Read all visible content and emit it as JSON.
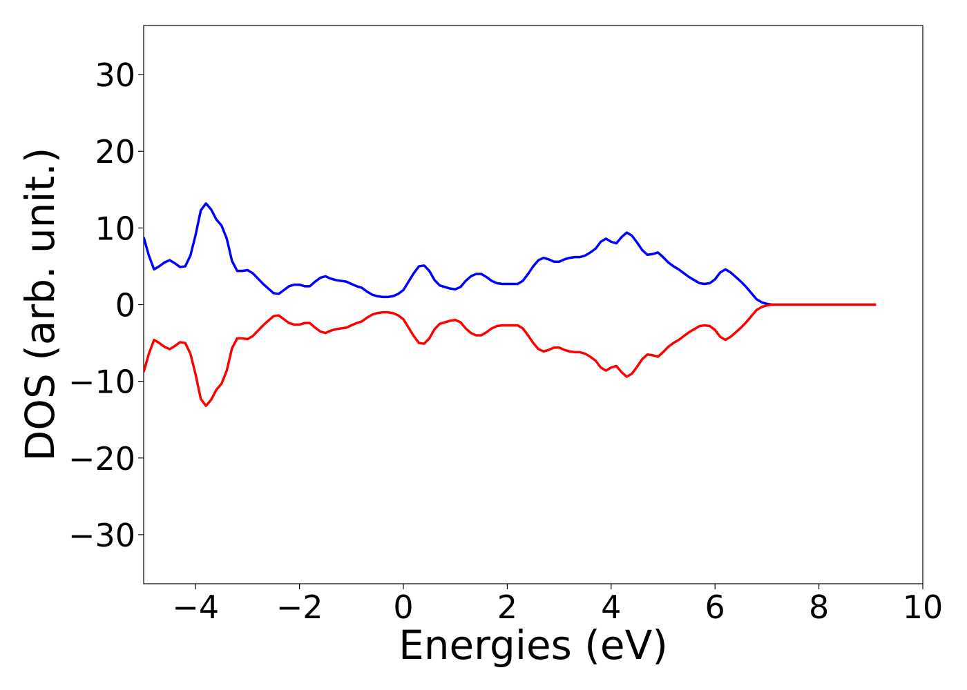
{
  "chart_data": {
    "type": "line",
    "x_label": "Energies (eV)",
    "y_label": "DOS (arb. unit.)",
    "xlim": [
      -5,
      10
    ],
    "ylim": [
      -36.4,
      36.4
    ],
    "xticks": [
      {
        "value": -4,
        "label": "−4"
      },
      {
        "value": -2,
        "label": "−2"
      },
      0,
      2,
      4,
      6,
      8,
      10
    ],
    "yticks": [
      {
        "value": -30,
        "label": "−30"
      },
      {
        "value": -20,
        "label": "−20"
      },
      {
        "value": -10,
        "label": "−10"
      },
      0,
      10,
      20,
      30
    ],
    "grid": false,
    "x": [
      -5,
      -4.9,
      -4.8,
      -4.7,
      -4.6,
      -4.5,
      -4.4,
      -4.3,
      -4.2,
      -4.1,
      -4,
      -3.9,
      -3.8,
      -3.7,
      -3.6,
      -3.5,
      -3.4,
      -3.3,
      -3.2,
      -3.1,
      -3,
      -2.9,
      -2.8,
      -2.7,
      -2.6,
      -2.5,
      -2.4,
      -2.3,
      -2.2,
      -2.1,
      -2,
      -1.9,
      -1.8,
      -1.7,
      -1.6,
      -1.5,
      -1.4,
      -1.3,
      -1.2,
      -1.1,
      -1,
      -0.9,
      -0.8,
      -0.7,
      -0.6,
      -0.5,
      -0.4,
      -0.3,
      -0.2,
      -0.1,
      0,
      0.1,
      0.2,
      0.3,
      0.4,
      0.5,
      0.6,
      0.7,
      0.8,
      0.9,
      1,
      1.1,
      1.2,
      1.3,
      1.4,
      1.5,
      1.6,
      1.7,
      1.8,
      1.9,
      2,
      2.1,
      2.2,
      2.3,
      2.4,
      2.5,
      2.6,
      2.7,
      2.8,
      2.9,
      3,
      3.1,
      3.2,
      3.3,
      3.4,
      3.5,
      3.6,
      3.7,
      3.8,
      3.9,
      4,
      4.1,
      4.2,
      4.3,
      4.4,
      4.5,
      4.6,
      4.7,
      4.8,
      4.9,
      5,
      5.1,
      5.2,
      5.3,
      5.4,
      5.5,
      5.6,
      5.7,
      5.8,
      5.9,
      6,
      6.1,
      6.2,
      6.3,
      6.4,
      6.5,
      6.6,
      6.7,
      6.8,
      6.9,
      7,
      7.1,
      7.5,
      8,
      8.5,
      9.1
    ],
    "series": [
      {
        "color": "#0000ff",
        "values": [
          8.8,
          6.4,
          4.6,
          5.0,
          5.5,
          5.8,
          5.4,
          4.9,
          5.0,
          6.4,
          9.1,
          12.3,
          13.2,
          12.4,
          11.1,
          10.3,
          8.6,
          5.7,
          4.4,
          4.4,
          4.5,
          4.1,
          3.4,
          2.7,
          2.1,
          1.5,
          1.4,
          1.9,
          2.4,
          2.6,
          2.6,
          2.4,
          2.4,
          3.0,
          3.5,
          3.7,
          3.4,
          3.2,
          3.1,
          3.0,
          2.7,
          2.4,
          2.2,
          1.7,
          1.3,
          1.1,
          1.0,
          1.0,
          1.1,
          1.4,
          1.9,
          3.0,
          4.1,
          5.0,
          5.1,
          4.4,
          3.2,
          2.5,
          2.3,
          2.1,
          2.0,
          2.3,
          3.1,
          3.7,
          4.0,
          4.0,
          3.6,
          3.1,
          2.8,
          2.7,
          2.7,
          2.7,
          2.7,
          3.1,
          4.0,
          5.0,
          5.8,
          6.1,
          5.9,
          5.6,
          5.6,
          5.9,
          6.1,
          6.2,
          6.2,
          6.4,
          6.8,
          7.3,
          8.2,
          8.6,
          8.2,
          8.0,
          8.8,
          9.4,
          9.0,
          8.1,
          7.1,
          6.5,
          6.6,
          6.8,
          6.2,
          5.5,
          5.0,
          4.6,
          4.1,
          3.6,
          3.2,
          2.8,
          2.7,
          2.8,
          3.3,
          4.2,
          4.6,
          4.2,
          3.6,
          3.0,
          2.3,
          1.5,
          0.7,
          0.3,
          0.1,
          0,
          0,
          0,
          0,
          0
        ]
      },
      {
        "color": "#ff0000",
        "values": [
          -8.8,
          -6.4,
          -4.6,
          -5.0,
          -5.5,
          -5.8,
          -5.4,
          -4.9,
          -5.0,
          -6.4,
          -9.1,
          -12.3,
          -13.2,
          -12.4,
          -11.1,
          -10.3,
          -8.6,
          -5.7,
          -4.4,
          -4.4,
          -4.5,
          -4.1,
          -3.4,
          -2.7,
          -2.1,
          -1.5,
          -1.4,
          -1.9,
          -2.4,
          -2.6,
          -2.6,
          -2.4,
          -2.4,
          -3.0,
          -3.5,
          -3.7,
          -3.4,
          -3.2,
          -3.1,
          -3.0,
          -2.7,
          -2.4,
          -2.2,
          -1.7,
          -1.3,
          -1.1,
          -1.0,
          -1.0,
          -1.1,
          -1.4,
          -1.9,
          -3.0,
          -4.1,
          -5.0,
          -5.1,
          -4.4,
          -3.2,
          -2.5,
          -2.3,
          -2.1,
          -2.0,
          -2.3,
          -3.1,
          -3.7,
          -4.0,
          -4.0,
          -3.6,
          -3.1,
          -2.8,
          -2.7,
          -2.7,
          -2.7,
          -2.7,
          -3.1,
          -4.0,
          -5.0,
          -5.8,
          -6.1,
          -5.9,
          -5.6,
          -5.6,
          -5.9,
          -6.1,
          -6.2,
          -6.2,
          -6.4,
          -6.8,
          -7.3,
          -8.2,
          -8.6,
          -8.2,
          -8.0,
          -8.8,
          -9.4,
          -9.0,
          -8.1,
          -7.1,
          -6.5,
          -6.6,
          -6.8,
          -6.2,
          -5.5,
          -5.0,
          -4.6,
          -4.1,
          -3.6,
          -3.2,
          -2.8,
          -2.7,
          -2.8,
          -3.3,
          -4.2,
          -4.6,
          -4.2,
          -3.6,
          -3.0,
          -2.3,
          -1.5,
          -0.7,
          -0.3,
          -0.1,
          0,
          0,
          0,
          0,
          0
        ]
      }
    ]
  }
}
